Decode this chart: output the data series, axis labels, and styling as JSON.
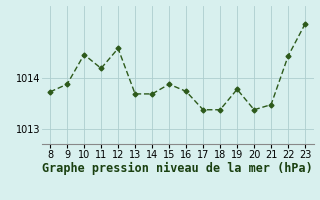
{
  "x": [
    8,
    9,
    10,
    11,
    12,
    13,
    14,
    15,
    16,
    17,
    18,
    19,
    20,
    21,
    22,
    23
  ],
  "y": [
    1013.72,
    1013.87,
    1014.45,
    1014.18,
    1014.57,
    1013.68,
    1013.68,
    1013.87,
    1013.73,
    1013.37,
    1013.37,
    1013.77,
    1013.37,
    1013.47,
    1014.42,
    1015.05
  ],
  "line_color": "#2d5a1b",
  "marker": "D",
  "marker_size": 2.5,
  "bg_color": "#d8f0ee",
  "grid_color": "#aecece",
  "xlabel": "Graphe pression niveau de la mer (hPa)",
  "xlabel_fontsize": 8.5,
  "yticks": [
    1013,
    1014
  ],
  "ylim": [
    1012.7,
    1015.4
  ],
  "xlim": [
    7.5,
    23.5
  ],
  "xticks": [
    8,
    9,
    10,
    11,
    12,
    13,
    14,
    15,
    16,
    17,
    18,
    19,
    20,
    21,
    22,
    23
  ],
  "tick_fontsize": 7,
  "linewidth": 1.0
}
